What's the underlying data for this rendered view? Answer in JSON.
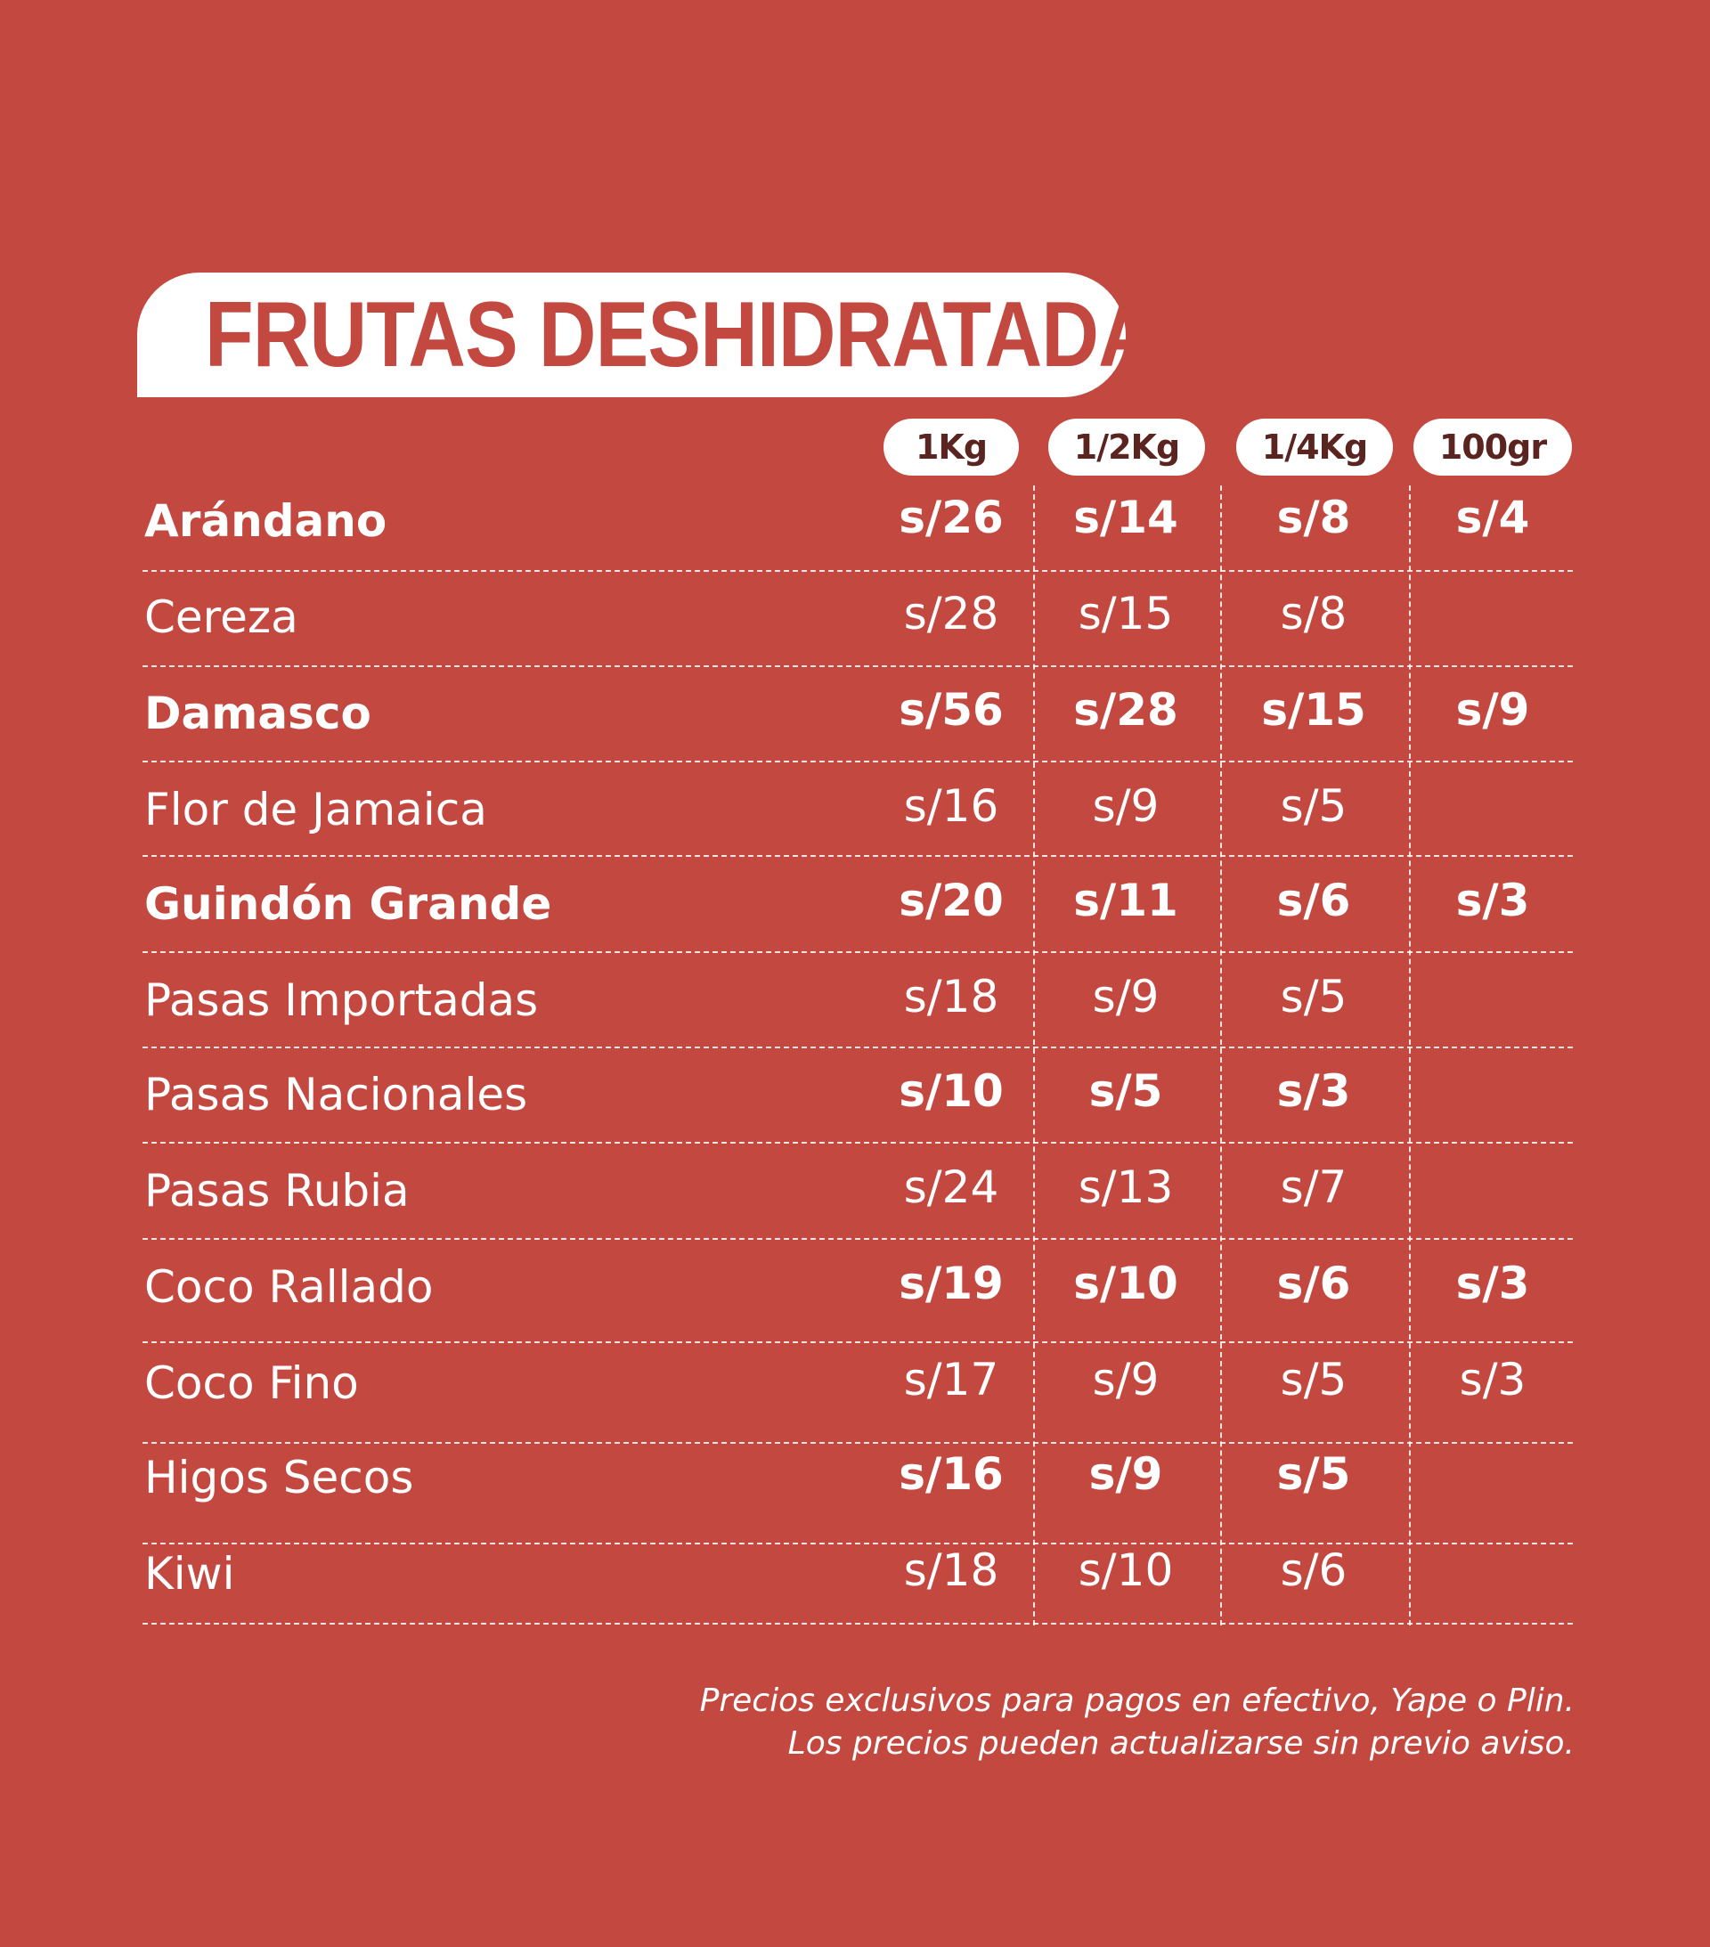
{
  "title": "FRUTAS DESHIDRATADAS",
  "columns": [
    "1Kg",
    "1/2Kg",
    "1/4Kg",
    "100gr"
  ],
  "rows": [
    {
      "name": "Arándano",
      "bold": true,
      "prices": [
        "s/26",
        "s/14",
        "s/8",
        "s/4"
      ]
    },
    {
      "name": "Cereza",
      "bold": false,
      "prices": [
        "s/28",
        "s/15",
        "s/8",
        ""
      ]
    },
    {
      "name": "Damasco",
      "bold": true,
      "prices": [
        "s/56",
        "s/28",
        "s/15",
        "s/9"
      ]
    },
    {
      "name": "Flor de Jamaica",
      "bold": false,
      "prices": [
        "s/16",
        "s/9",
        "s/5",
        ""
      ]
    },
    {
      "name": "Guindón Grande",
      "bold": true,
      "prices": [
        "s/20",
        "s/11",
        "s/6",
        "s/3"
      ]
    },
    {
      "name": "Pasas Importadas",
      "bold": false,
      "prices": [
        "s/18",
        "s/9",
        "s/5",
        ""
      ]
    },
    {
      "name": "Pasas Nacionales",
      "bold": false,
      "prices": [
        "s/10",
        "s/5",
        "s/3",
        ""
      ],
      "prices_bold": true
    },
    {
      "name": "Pasas Rubia",
      "bold": false,
      "prices": [
        "s/24",
        "s/13",
        "s/7",
        ""
      ]
    },
    {
      "name": "Coco Rallado",
      "bold": false,
      "prices": [
        "s/19",
        "s/10",
        "s/6",
        "s/3"
      ],
      "prices_bold": true
    },
    {
      "name": "Coco Fino",
      "bold": false,
      "prices": [
        "s/17",
        "s/9",
        "s/5",
        "s/3"
      ]
    },
    {
      "name": "Higos Secos",
      "bold": false,
      "prices": [
        "s/16",
        "s/9",
        "s/5",
        ""
      ],
      "prices_bold": true
    },
    {
      "name": "Kiwi",
      "bold": false,
      "prices": [
        "s/18",
        "s/10",
        "s/6",
        ""
      ]
    }
  ],
  "note": {
    "line1": "Precios exclusivos para pagos en efectivo, Yape o Plin.",
    "line2": "Los precios pueden actualizarse sin previo aviso."
  },
  "colors": {
    "background": "#c3483f",
    "pill": "#ffffff",
    "pill_text": "#5a2420"
  }
}
